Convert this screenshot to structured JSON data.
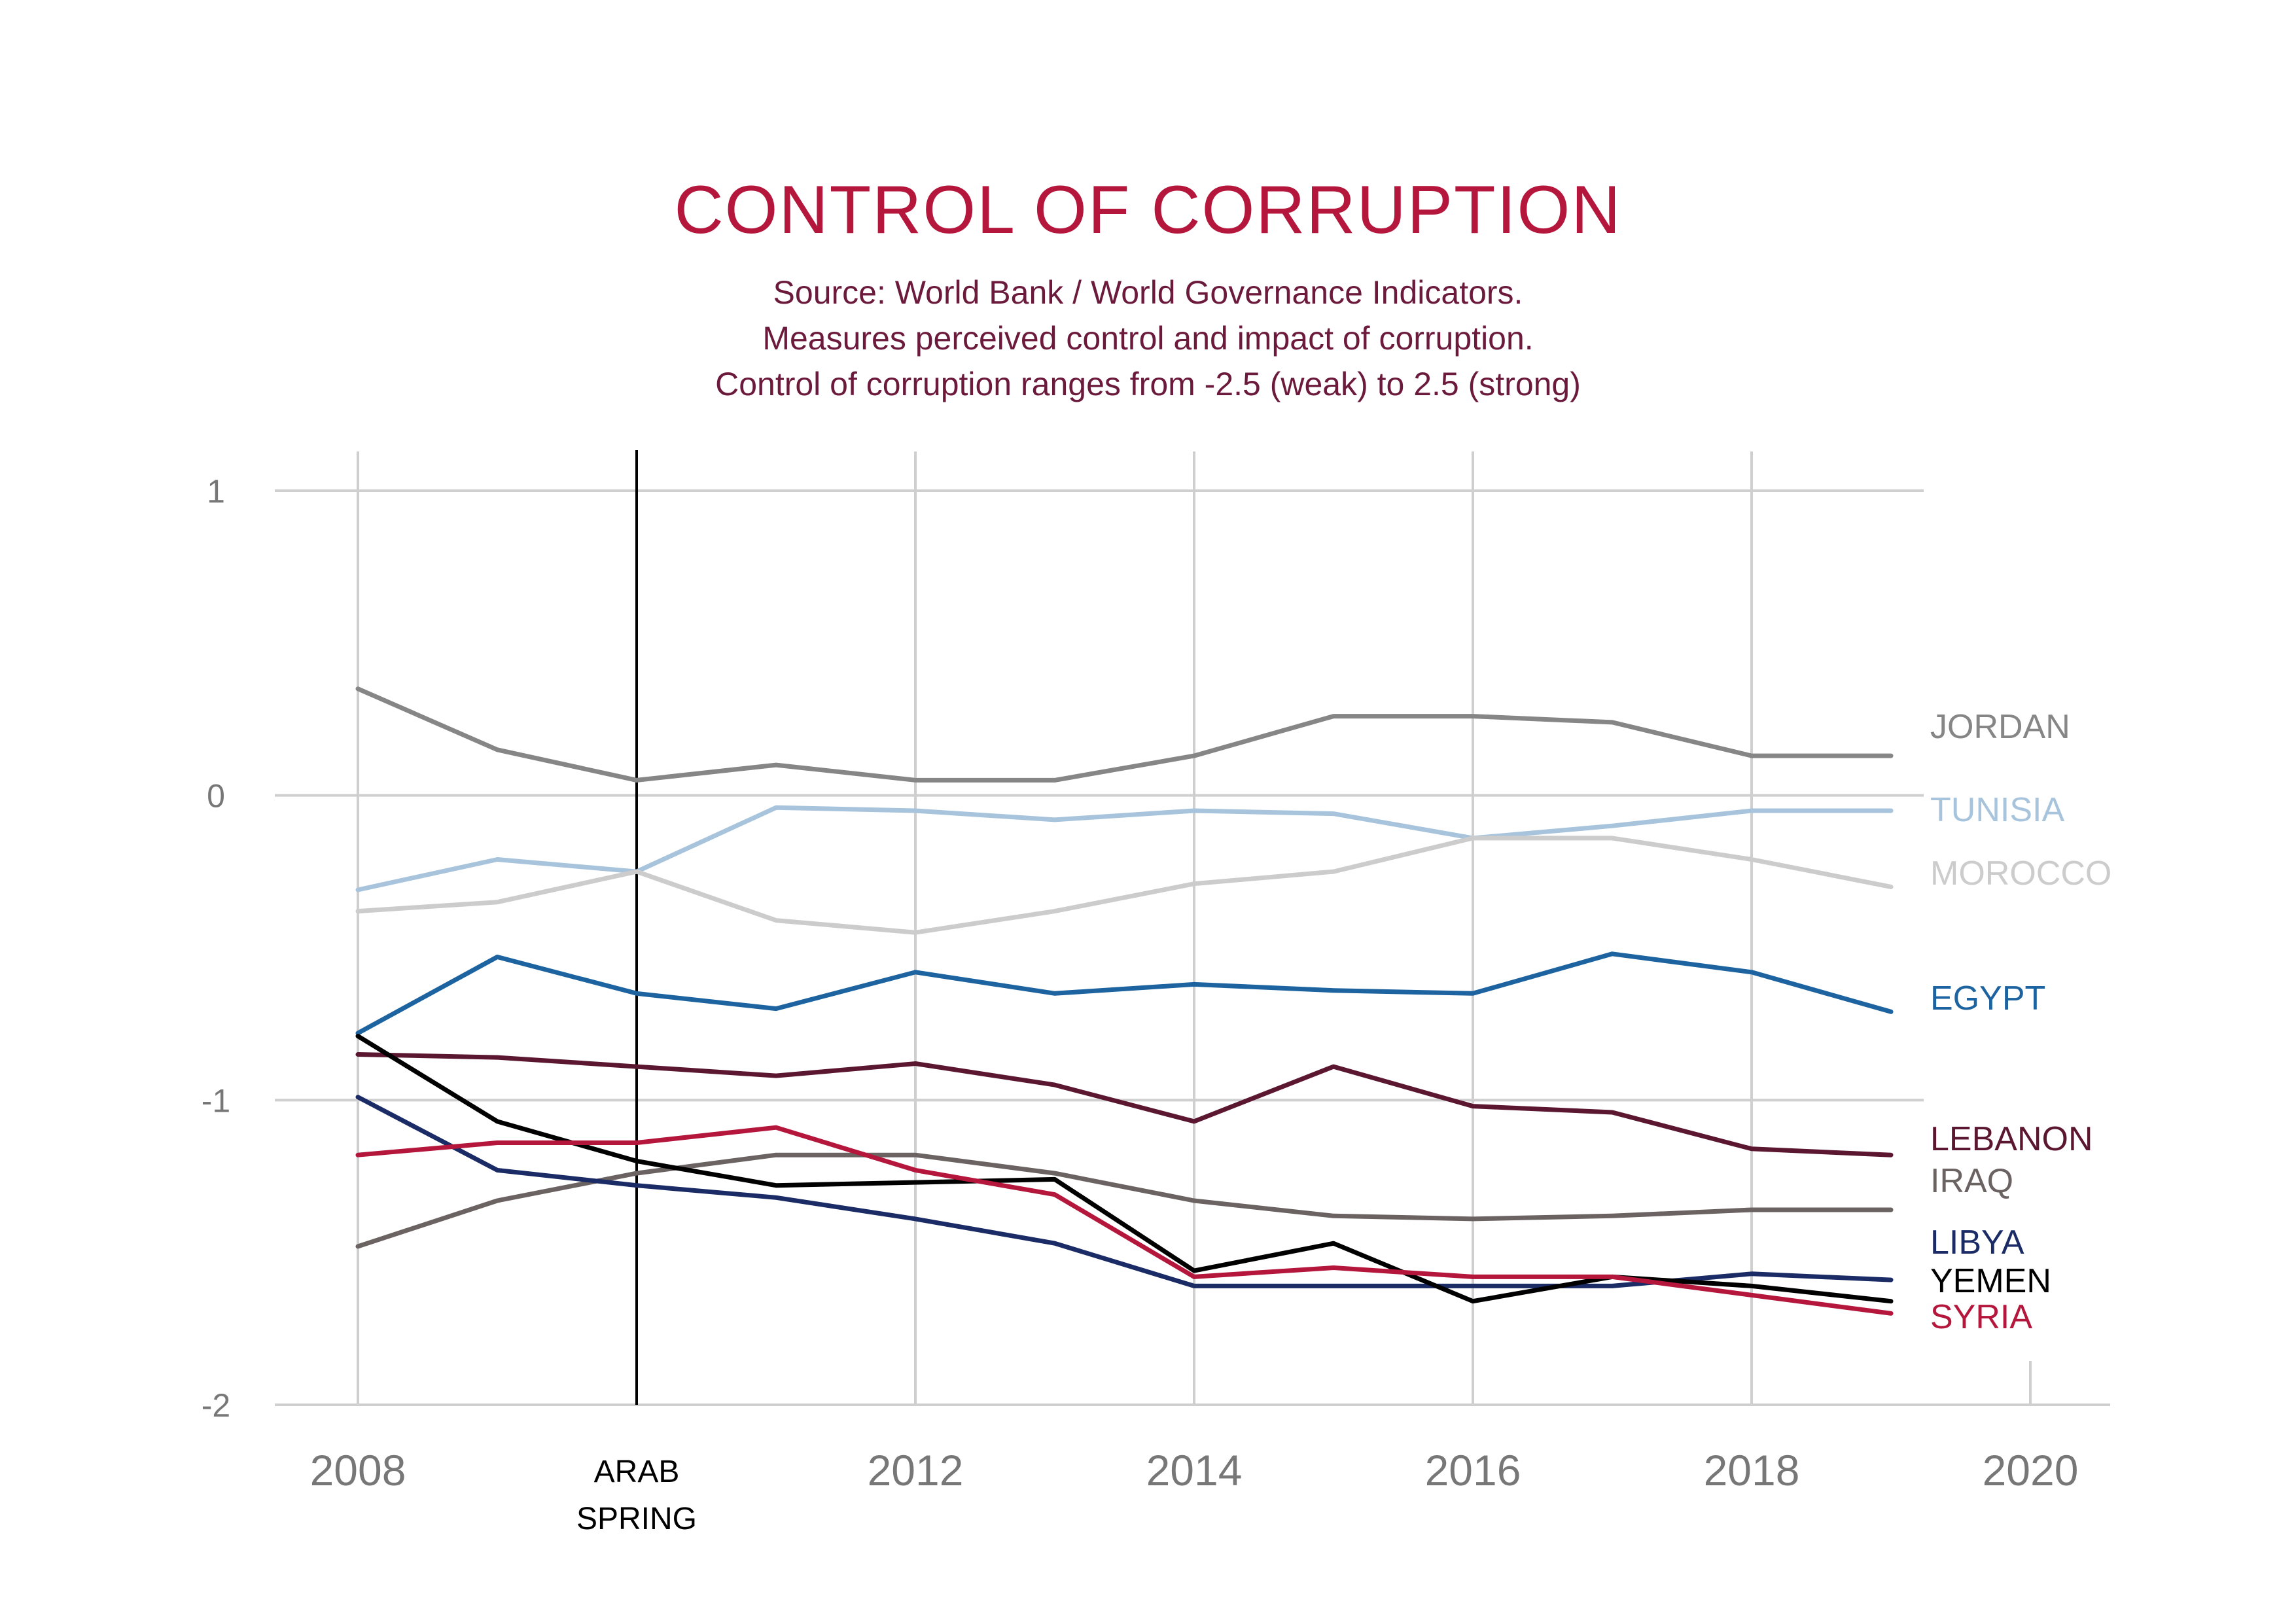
{
  "chart_data": {
    "type": "line",
    "title": "CONTROL OF CORRUPTION",
    "subtitle_lines": [
      "Source: World Bank / World Governance Indicators.",
      "Measures perceived control and impact of corruption.",
      "Control of corruption ranges from -2.5 (weak) to 2.5 (strong)"
    ],
    "xlabel": "",
    "ylabel": "",
    "xlim": [
      2008,
      2020
    ],
    "ylim": [
      -2,
      1
    ],
    "x_ticks": [
      2008,
      2012,
      2014,
      2016,
      2018,
      2020
    ],
    "x_tick_labels": [
      "2008",
      "2012",
      "2014",
      "2016",
      "2018",
      "2020"
    ],
    "y_ticks": [
      1,
      0,
      -1,
      -2
    ],
    "y_tick_labels": [
      "1",
      "0",
      "-1",
      "-2"
    ],
    "grid": true,
    "annotation": {
      "x": 2010,
      "label_lines": [
        "ARAB",
        "SPRING"
      ]
    },
    "x": [
      2008,
      2009,
      2010,
      2011,
      2012,
      2013,
      2014,
      2015,
      2016,
      2017,
      2018,
      2019
    ],
    "series": [
      {
        "name": "JORDAN",
        "color": "#868686",
        "values": [
          0.35,
          0.15,
          0.05,
          0.1,
          0.05,
          0.05,
          0.13,
          0.26,
          0.26,
          0.24,
          0.13,
          0.13
        ]
      },
      {
        "name": "TUNISIA",
        "color": "#a7c4dc",
        "values": [
          -0.31,
          -0.21,
          -0.25,
          -0.04,
          -0.05,
          -0.08,
          -0.05,
          -0.06,
          -0.14,
          -0.1,
          -0.05,
          -0.05
        ]
      },
      {
        "name": "MOROCCO",
        "color": "#cccccc",
        "values": [
          -0.38,
          -0.35,
          -0.25,
          -0.41,
          -0.45,
          -0.38,
          -0.29,
          -0.25,
          -0.14,
          -0.14,
          -0.21,
          -0.3
        ]
      },
      {
        "name": "EGYPT",
        "color": "#1c63a0",
        "values": [
          -0.78,
          -0.53,
          -0.65,
          -0.7,
          -0.58,
          -0.65,
          -0.62,
          -0.64,
          -0.65,
          -0.52,
          -0.58,
          -0.71
        ]
      },
      {
        "name": "LEBANON",
        "color": "#5c1730",
        "values": [
          -0.85,
          -0.86,
          -0.89,
          -0.92,
          -0.88,
          -0.95,
          -1.07,
          -0.89,
          -1.02,
          -1.04,
          -1.16,
          -1.18
        ]
      },
      {
        "name": "IRAQ",
        "color": "#6b6262",
        "values": [
          -1.48,
          -1.33,
          -1.24,
          -1.18,
          -1.18,
          -1.24,
          -1.33,
          -1.38,
          -1.39,
          -1.38,
          -1.36,
          -1.36
        ]
      },
      {
        "name": "LIBYA",
        "color": "#1a2b66",
        "values": [
          -0.99,
          -1.23,
          -1.28,
          -1.32,
          -1.39,
          -1.47,
          -1.61,
          -1.61,
          -1.61,
          -1.61,
          -1.57,
          -1.59
        ]
      },
      {
        "name": "YEMEN",
        "color": "#000000",
        "values": [
          -0.79,
          -1.07,
          -1.2,
          -1.28,
          -1.27,
          -1.26,
          -1.56,
          -1.47,
          -1.66,
          -1.58,
          -1.61,
          -1.66
        ]
      },
      {
        "name": "SYRIA",
        "color": "#b4163c",
        "values": [
          -1.18,
          -1.14,
          -1.14,
          -1.09,
          -1.23,
          -1.31,
          -1.58,
          -1.55,
          -1.58,
          -1.58,
          -1.64,
          -1.7
        ]
      }
    ],
    "colors": {
      "title": "#b4163c",
      "subtitle": "#6b1a3c",
      "grid": "#cfcfcf",
      "tick_label": "#777777",
      "annotation": "#000000"
    }
  }
}
